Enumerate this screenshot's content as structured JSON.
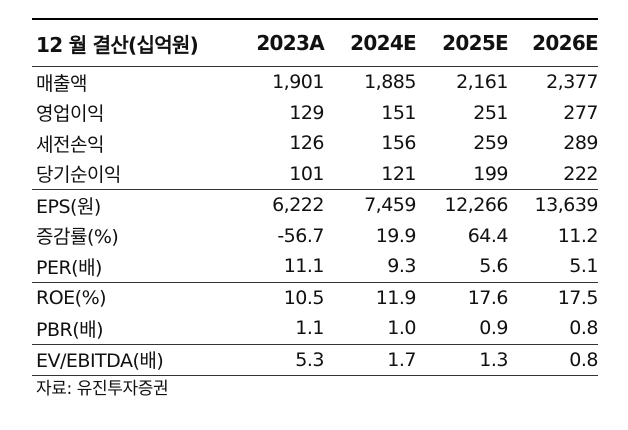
{
  "header": {
    "label": "12 월 결산(십억원)",
    "years": [
      "2023A",
      "2024E",
      "2025E",
      "2026E"
    ]
  },
  "groups": [
    {
      "rows": [
        {
          "label": "매출액",
          "values": [
            "1,901",
            "1,885",
            "2,161",
            "2,377"
          ]
        },
        {
          "label": "영업이익",
          "values": [
            "129",
            "151",
            "251",
            "277"
          ]
        },
        {
          "label": "세전손익",
          "values": [
            "126",
            "156",
            "259",
            "289"
          ]
        },
        {
          "label": "당기순이익",
          "values": [
            "101",
            "121",
            "199",
            "222"
          ]
        }
      ]
    },
    {
      "rows": [
        {
          "label": "EPS(원)",
          "values": [
            "6,222",
            "7,459",
            "12,266",
            "13,639"
          ]
        },
        {
          "label": "증감률(%)",
          "values": [
            "-56.7",
            "19.9",
            "64.4",
            "11.2"
          ]
        },
        {
          "label": "PER(배)",
          "values": [
            "11.1",
            "9.3",
            "5.6",
            "5.1"
          ]
        }
      ]
    },
    {
      "rows": [
        {
          "label": "ROE(%)",
          "values": [
            "10.5",
            "11.9",
            "17.6",
            "17.5"
          ]
        },
        {
          "label": "PBR(배)",
          "values": [
            "1.1",
            "1.0",
            "0.9",
            "0.8"
          ]
        }
      ]
    },
    {
      "rows": [
        {
          "label": "EV/EBITDA(배)",
          "values": [
            "5.3",
            "1.7",
            "1.3",
            "0.8"
          ]
        }
      ]
    }
  ],
  "source": "자료: 유진투자증권"
}
